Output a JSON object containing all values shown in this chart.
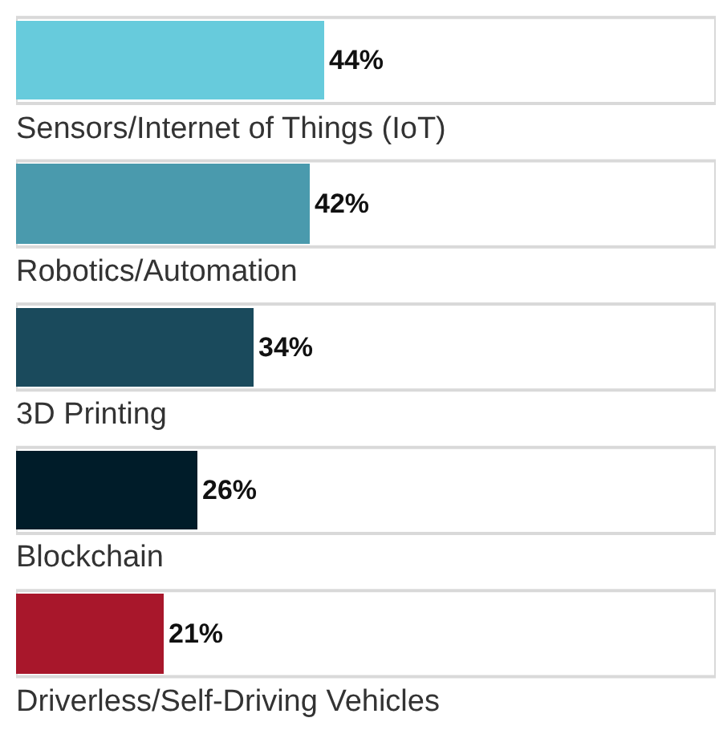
{
  "chart_data": {
    "type": "bar",
    "orientation": "horizontal",
    "categories": [
      "Sensors/Internet of Things (IoT)",
      "Robotics/Automation",
      "3D Printing",
      "Blockchain",
      "Driverless/Self-Driving Vehicles"
    ],
    "values": [
      44,
      42,
      34,
      26,
      21
    ],
    "colors": [
      "#67cbdc",
      "#4a9aad",
      "#1a4a5c",
      "#001c29",
      "#a8172b"
    ],
    "value_labels": [
      "44%",
      "42%",
      "34%",
      "26%",
      "21%"
    ],
    "xlim": [
      0,
      100
    ],
    "tick_labels": false
  }
}
